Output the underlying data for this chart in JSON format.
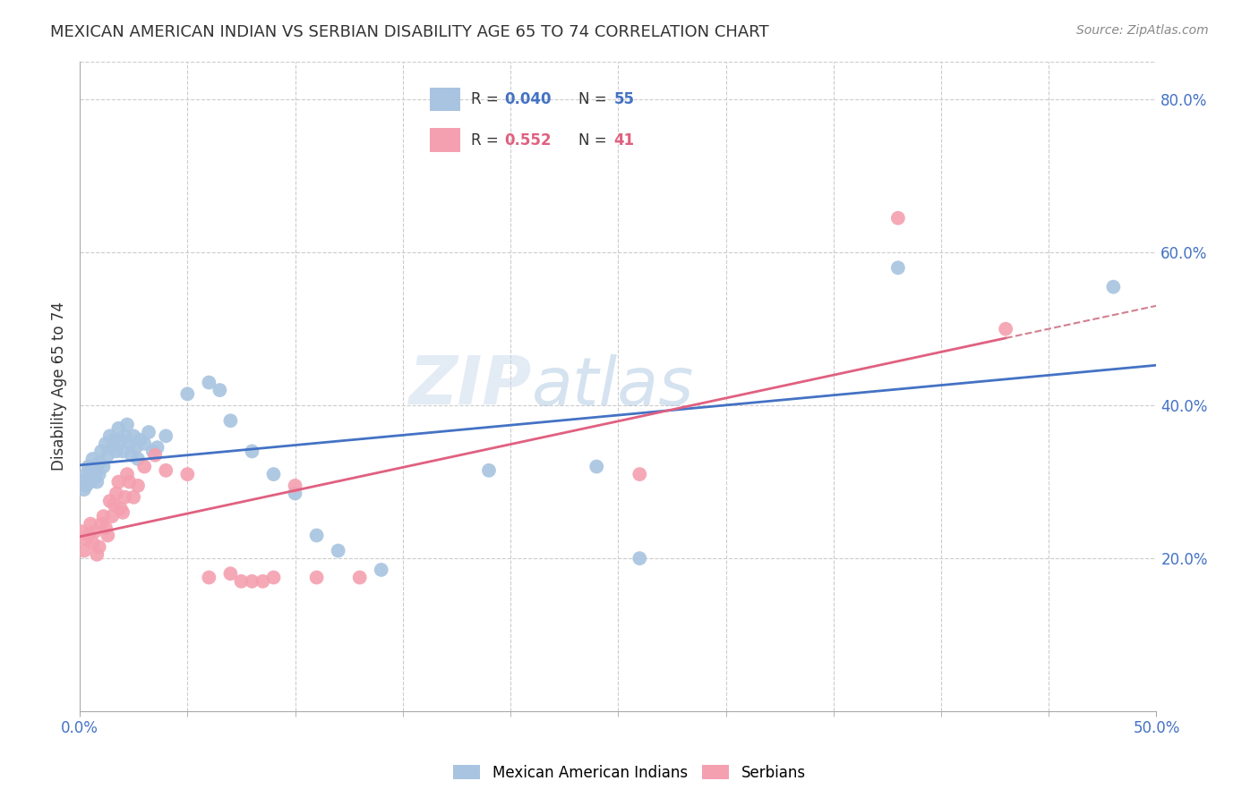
{
  "title": "MEXICAN AMERICAN INDIAN VS SERBIAN DISABILITY AGE 65 TO 74 CORRELATION CHART",
  "source": "Source: ZipAtlas.com",
  "ylabel": "Disability Age 65 to 74",
  "xlim": [
    0.0,
    0.5
  ],
  "ylim": [
    0.0,
    0.85
  ],
  "xticks_minor": [
    0.05,
    0.1,
    0.15,
    0.2,
    0.25,
    0.3,
    0.35,
    0.4,
    0.45
  ],
  "xtick_labels_ends": [
    "0.0%",
    "50.0%"
  ],
  "yticks": [
    0.2,
    0.4,
    0.6,
    0.8
  ],
  "ytick_labels": [
    "20.0%",
    "40.0%",
    "60.0%",
    "80.0%"
  ],
  "blue_R": 0.04,
  "blue_N": 55,
  "pink_R": 0.552,
  "pink_N": 41,
  "watermark": "ZIPatlas",
  "legend_labels": [
    "Mexican American Indians",
    "Serbians"
  ],
  "blue_color": "#a8c4e0",
  "pink_color": "#f4a0b0",
  "blue_line_color": "#4472c4",
  "pink_line_color": "#e06080",
  "dashed_line_color": "#d48090",
  "blue_scatter": [
    [
      0.001,
      0.3
    ],
    [
      0.002,
      0.29
    ],
    [
      0.003,
      0.295
    ],
    [
      0.003,
      0.31
    ],
    [
      0.004,
      0.305
    ],
    [
      0.004,
      0.32
    ],
    [
      0.005,
      0.3
    ],
    [
      0.005,
      0.315
    ],
    [
      0.006,
      0.31
    ],
    [
      0.006,
      0.33
    ],
    [
      0.007,
      0.305
    ],
    [
      0.007,
      0.32
    ],
    [
      0.008,
      0.315
    ],
    [
      0.008,
      0.3
    ],
    [
      0.009,
      0.325
    ],
    [
      0.009,
      0.31
    ],
    [
      0.01,
      0.34
    ],
    [
      0.011,
      0.32
    ],
    [
      0.012,
      0.35
    ],
    [
      0.013,
      0.335
    ],
    [
      0.014,
      0.36
    ],
    [
      0.015,
      0.345
    ],
    [
      0.016,
      0.355
    ],
    [
      0.017,
      0.34
    ],
    [
      0.018,
      0.37
    ],
    [
      0.019,
      0.355
    ],
    [
      0.02,
      0.34
    ],
    [
      0.021,
      0.36
    ],
    [
      0.022,
      0.375
    ],
    [
      0.023,
      0.35
    ],
    [
      0.024,
      0.335
    ],
    [
      0.025,
      0.36
    ],
    [
      0.026,
      0.345
    ],
    [
      0.027,
      0.33
    ],
    [
      0.028,
      0.355
    ],
    [
      0.03,
      0.35
    ],
    [
      0.032,
      0.365
    ],
    [
      0.034,
      0.34
    ],
    [
      0.036,
      0.345
    ],
    [
      0.04,
      0.36
    ],
    [
      0.05,
      0.415
    ],
    [
      0.06,
      0.43
    ],
    [
      0.065,
      0.42
    ],
    [
      0.07,
      0.38
    ],
    [
      0.08,
      0.34
    ],
    [
      0.09,
      0.31
    ],
    [
      0.1,
      0.285
    ],
    [
      0.11,
      0.23
    ],
    [
      0.12,
      0.21
    ],
    [
      0.14,
      0.185
    ],
    [
      0.19,
      0.315
    ],
    [
      0.24,
      0.32
    ],
    [
      0.26,
      0.2
    ],
    [
      0.38,
      0.58
    ],
    [
      0.48,
      0.555
    ]
  ],
  "pink_scatter": [
    [
      0.001,
      0.235
    ],
    [
      0.002,
      0.21
    ],
    [
      0.003,
      0.225
    ],
    [
      0.004,
      0.23
    ],
    [
      0.005,
      0.245
    ],
    [
      0.006,
      0.22
    ],
    [
      0.007,
      0.235
    ],
    [
      0.008,
      0.205
    ],
    [
      0.009,
      0.215
    ],
    [
      0.01,
      0.245
    ],
    [
      0.011,
      0.255
    ],
    [
      0.012,
      0.24
    ],
    [
      0.013,
      0.23
    ],
    [
      0.014,
      0.275
    ],
    [
      0.015,
      0.255
    ],
    [
      0.016,
      0.27
    ],
    [
      0.017,
      0.285
    ],
    [
      0.018,
      0.3
    ],
    [
      0.019,
      0.265
    ],
    [
      0.02,
      0.26
    ],
    [
      0.021,
      0.28
    ],
    [
      0.022,
      0.31
    ],
    [
      0.023,
      0.3
    ],
    [
      0.025,
      0.28
    ],
    [
      0.027,
      0.295
    ],
    [
      0.03,
      0.32
    ],
    [
      0.035,
      0.335
    ],
    [
      0.04,
      0.315
    ],
    [
      0.05,
      0.31
    ],
    [
      0.06,
      0.175
    ],
    [
      0.07,
      0.18
    ],
    [
      0.075,
      0.17
    ],
    [
      0.08,
      0.17
    ],
    [
      0.085,
      0.17
    ],
    [
      0.09,
      0.175
    ],
    [
      0.1,
      0.295
    ],
    [
      0.11,
      0.175
    ],
    [
      0.13,
      0.175
    ],
    [
      0.26,
      0.31
    ],
    [
      0.38,
      0.645
    ],
    [
      0.43,
      0.5
    ]
  ]
}
